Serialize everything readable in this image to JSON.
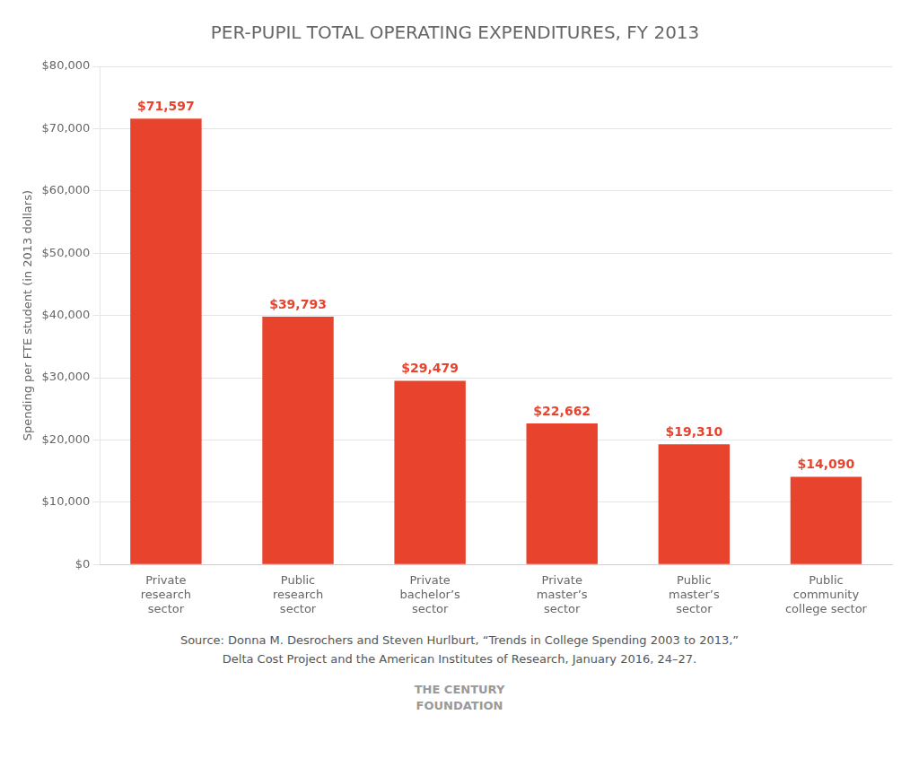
{
  "chart_data": {
    "type": "bar",
    "title": "PER-PUPIL TOTAL OPERATING EXPENDITURES, FY 2013",
    "y_label": "Spending per FTE student (in 2013 dollars)",
    "categories": [
      "Private\nresearch\nsector",
      "Public\nresearch\nsector",
      "Private\nbachelor’s\nsector",
      "Private\nmaster’s\nsector",
      "Public\nmaster’s\nsector",
      "Public\ncommunity\ncollege sector"
    ],
    "values": [
      71597,
      39793,
      29479,
      22662,
      19310,
      14090
    ],
    "value_labels": [
      "$71,597",
      "$39,793",
      "$29,479",
      "$22,662",
      "$19,310",
      "$14,090"
    ],
    "color": "#E8432D",
    "ylim": [
      0,
      80000
    ],
    "yticks": [
      {
        "value": 0,
        "label": "$0"
      },
      {
        "value": 10000,
        "label": "$10,000"
      },
      {
        "value": 20000,
        "label": "$20,000"
      },
      {
        "value": 30000,
        "label": "$30,000"
      },
      {
        "value": 40000,
        "label": "$40,000"
      },
      {
        "value": 50000,
        "label": "$50,000"
      },
      {
        "value": 60000,
        "label": "$60,000"
      },
      {
        "value": 70000,
        "label": "$70,000"
      },
      {
        "value": 80000,
        "label": "$80,000"
      }
    ],
    "grid": true,
    "annotations": [
      "Source: Donna M. Desrochers and Steven Hurlburt, “Trends in College Spending 2003 to 2013,”",
      "Delta Cost Project and the American Institutes of Research, January 2016, 24–27.",
      "THE CENTURY\nFOUNDATION"
    ]
  }
}
